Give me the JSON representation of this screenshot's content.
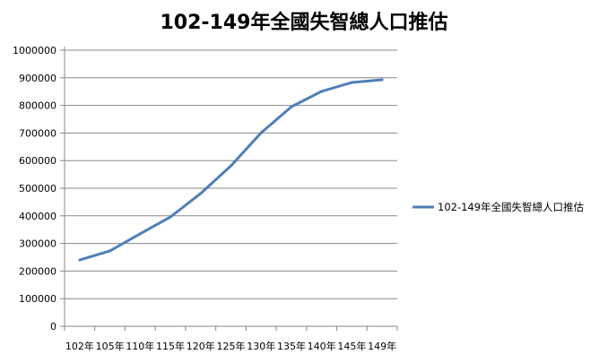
{
  "chart_data": {
    "type": "line",
    "title": "102-149年全國失智總人口推估",
    "xlabel": "",
    "ylabel": "",
    "categories": [
      "102年",
      "105年",
      "110年",
      "115年",
      "120年",
      "125年",
      "130年",
      "135年",
      "140年",
      "145年",
      "149年"
    ],
    "series": [
      {
        "name": "102-149年全國失智總人口推估",
        "color": "#4f7fb8",
        "values": [
          240000,
          273000,
          335000,
          396000,
          481000,
          581000,
          701000,
          795000,
          851000,
          883000,
          893000
        ]
      }
    ],
    "ylim": [
      0,
      1000000
    ],
    "yticks": [
      "0",
      "100000",
      "200000",
      "300000",
      "400000",
      "500000",
      "600000",
      "700000",
      "800000",
      "900000",
      "1000000"
    ],
    "grid": true,
    "legend_position": "right"
  }
}
